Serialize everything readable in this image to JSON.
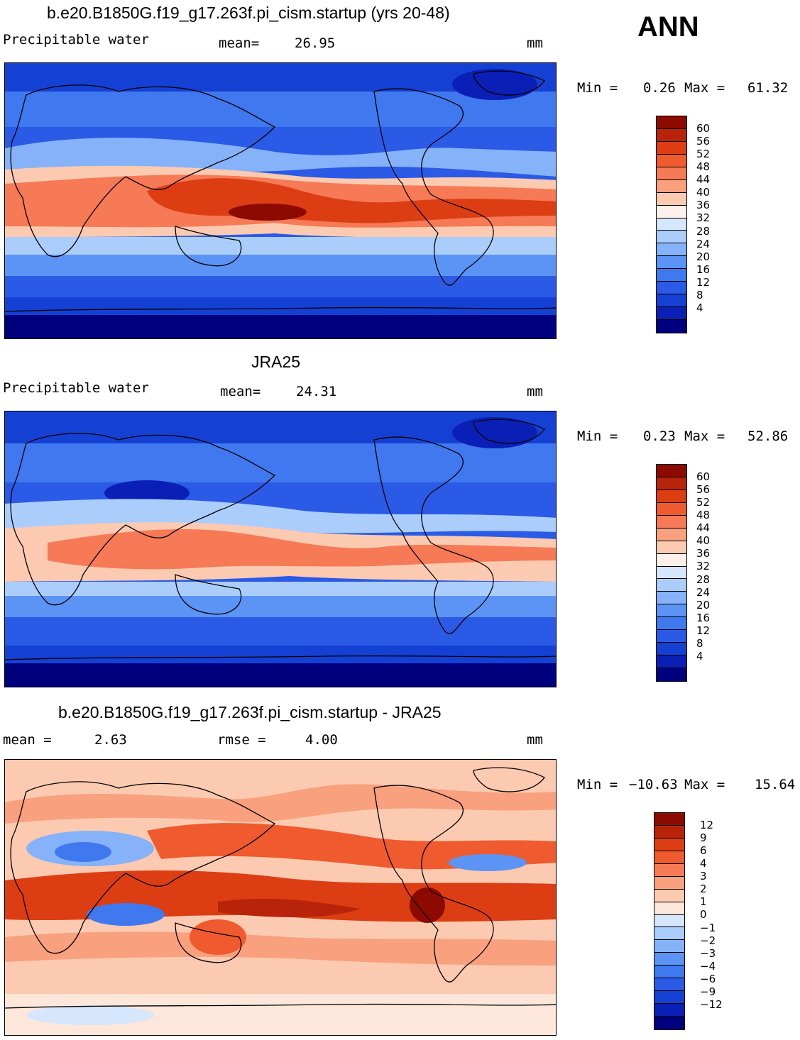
{
  "season": "ANN",
  "colors": {
    "abs_scale": [
      "#00007f",
      "#0a1fb5",
      "#1540d4",
      "#2a5ae6",
      "#3f78ef",
      "#5b94f5",
      "#85b2f8",
      "#aacdfb",
      "#d5e6fd",
      "#fdf0ea",
      "#fccab1",
      "#f9a07e",
      "#f57a55",
      "#ef5a2e",
      "#dd3d13",
      "#b8240a",
      "#8c0a00"
    ],
    "diff_scale": [
      "#00007f",
      "#0a1fb5",
      "#1540d4",
      "#2a5ae6",
      "#3f78ef",
      "#5b94f5",
      "#85b2f8",
      "#aacdfb",
      "#d5e6fd",
      "#fde6da",
      "#fccab1",
      "#f9a07e",
      "#f57a55",
      "#ef5a2e",
      "#dd3d13",
      "#b8240a",
      "#8c0a00"
    ]
  },
  "panels": [
    {
      "title": "b.e20.B1850G.f19_g17.263f.pi_cism.startup (yrs 20-48)",
      "left_label": "Precipitable water",
      "stat_label": "mean=",
      "stat_value": "26.95",
      "unit": "mm",
      "min_label": "Min =",
      "min_value": "0.26",
      "max_label": "Max =",
      "max_value": "61.32",
      "colorbar_labels": [
        "60",
        "56",
        "52",
        "48",
        "44",
        "40",
        "36",
        "32",
        "28",
        "24",
        "20",
        "16",
        "12",
        "8",
        "4"
      ]
    },
    {
      "title": "JRA25",
      "left_label": "Precipitable water",
      "stat_label": "mean=",
      "stat_value": "24.31",
      "unit": "mm",
      "min_label": "Min =",
      "min_value": "0.23",
      "max_label": "Max =",
      "max_value": "52.86",
      "colorbar_labels": [
        "60",
        "56",
        "52",
        "48",
        "44",
        "40",
        "36",
        "32",
        "28",
        "24",
        "20",
        "16",
        "12",
        "8",
        "4"
      ]
    },
    {
      "title": "b.e20.B1850G.f19_g17.263f.pi_cism.startup - JRA25",
      "left_label": "mean =",
      "left_value": "2.63",
      "stat_label": "rmse =",
      "stat_value": "4.00",
      "unit": "mm",
      "min_label": "Min =",
      "min_value": "−10.63",
      "max_label": "Max =",
      "max_value": "15.64",
      "colorbar_labels": [
        "12",
        "9",
        "6",
        "4",
        "3",
        "2",
        "1",
        "0",
        "−1",
        "−2",
        "−3",
        "−4",
        "−6",
        "−9",
        "−12"
      ]
    }
  ]
}
